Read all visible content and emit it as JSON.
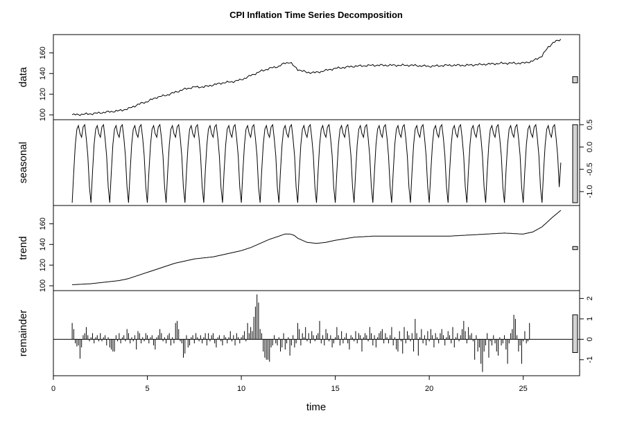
{
  "chart_data": {
    "type": "line",
    "title": "CPI Inflation Time Series Decomposition",
    "xlabel": "time",
    "xlim": [
      0,
      28
    ],
    "x_ticks": [
      0,
      5,
      10,
      15,
      20,
      25
    ],
    "x_start": 1,
    "x_end": 27,
    "frequency": 12,
    "panels": [
      {
        "name": "data",
        "label": "data",
        "ylim": [
          98,
          175
        ],
        "ticks": [
          100,
          120,
          140,
          160
        ],
        "tick_side": "left",
        "knots_x": [
          1,
          2,
          3,
          3.5,
          4,
          4.5,
          5,
          5.5,
          6,
          6.5,
          7,
          7.5,
          8,
          8.5,
          9,
          9.5,
          10,
          10.5,
          11,
          11.5,
          12,
          12.3,
          12.6,
          12.8,
          13,
          13.5,
          14,
          14.5,
          15,
          16,
          17,
          18,
          19,
          20,
          21,
          22,
          23,
          24,
          25,
          25.5,
          26,
          26.3,
          26.6,
          27
        ],
        "knots_y": [
          100,
          101,
          103,
          104,
          106,
          110,
          113,
          117,
          119,
          122,
          125,
          127,
          127,
          129,
          131,
          132,
          134,
          138,
          142,
          145,
          147,
          150,
          151,
          147,
          144,
          141,
          141,
          143,
          145,
          147,
          148,
          148,
          148,
          147,
          148,
          148,
          149,
          150,
          150,
          152,
          157,
          165,
          170,
          173
        ],
        "noise": 1.2,
        "scale_bar": [
          131,
          137
        ]
      },
      {
        "name": "seasonal",
        "label": "seasonal",
        "ylim": [
          -1.25,
          0.55
        ],
        "ticks": [
          -1.0,
          -0.5,
          0.0,
          0.5
        ],
        "tick_labels": [
          "-1.0",
          "-0.5",
          "0.0",
          "0.5"
        ],
        "tick_side": "right",
        "season": [
          -1.25,
          -0.55,
          0.05,
          0.4,
          0.48,
          0.3,
          0.22,
          0.45,
          0.5,
          0.2,
          -0.2,
          -0.9
        ],
        "end_value": -0.35,
        "scale_bar": [
          -1.25,
          0.5
        ]
      },
      {
        "name": "trend",
        "label": "trend",
        "ylim": [
          98,
          175
        ],
        "ticks": [
          100,
          120,
          140,
          160
        ],
        "tick_side": "left",
        "knots_x": [
          1,
          2,
          3,
          3.5,
          4,
          4.5,
          5,
          5.5,
          6,
          6.5,
          7,
          7.5,
          8,
          8.5,
          9,
          9.5,
          10,
          10.5,
          11,
          11.5,
          12,
          12.3,
          12.6,
          12.8,
          13,
          13.5,
          14,
          14.5,
          15,
          16,
          17,
          18,
          19,
          20,
          21,
          22,
          23,
          24,
          25,
          25.5,
          26,
          26.3,
          26.6,
          27
        ],
        "knots_y": [
          101,
          102,
          104,
          105,
          107,
          110,
          113,
          116,
          119,
          122,
          124,
          126,
          127,
          128,
          130,
          132,
          134,
          137,
          141,
          145,
          148,
          150,
          150,
          149,
          146,
          142,
          141,
          142,
          144,
          147,
          148,
          148,
          148,
          148,
          148,
          149,
          150,
          151,
          150,
          152,
          157,
          162,
          167,
          173
        ],
        "scale_bar": [
          135,
          138
        ]
      },
      {
        "name": "remainder",
        "label": "remainder",
        "ylim": [
          -1.65,
          2.25
        ],
        "ticks": [
          -1,
          0,
          1,
          2
        ],
        "tick_labels": [
          "-1",
          "0",
          "1",
          "2"
        ],
        "tick_side": "right",
        "values": [
          0.8,
          0.5,
          -0.2,
          -0.35,
          -0.3,
          -0.95,
          -0.4,
          0.2,
          0.3,
          0.6,
          0.2,
          -0.1,
          0.1,
          0.3,
          -0.2,
          0.1,
          0.2,
          -0.1,
          0.3,
          -0.1,
          0.1,
          0.2,
          -0.3,
          0.1,
          -0.4,
          -0.5,
          -0.6,
          -0.6,
          0.2,
          -0.1,
          0.3,
          -0.2,
          0.1,
          0.2,
          -0.1,
          0.5,
          0.3,
          -0.2,
          0.1,
          -0.1,
          0.2,
          -0.5,
          0.4,
          0.3,
          -0.2,
          0.1,
          -0.1,
          0.3,
          0.2,
          -0.2,
          0.1,
          0.2,
          -0.3,
          -0.5,
          0.1,
          0.2,
          0.5,
          0.3,
          -0.1,
          0.1,
          -0.2,
          0.2,
          0.3,
          -0.3,
          0.1,
          -0.2,
          0.8,
          0.9,
          0.5,
          -0.1,
          -0.2,
          -0.9,
          -0.7,
          0.2,
          -0.4,
          -0.3,
          0.1,
          0.2,
          -0.2,
          0.3,
          0.1,
          -0.1,
          0.2,
          -0.2,
          0.1,
          0.3,
          -0.3,
          0.3,
          -0.1,
          0.2,
          0.3,
          -0.2,
          -0.4,
          0.1,
          0.2,
          -0.1,
          -0.3,
          0.2,
          0.1,
          -0.2,
          0.1,
          0.4,
          -0.1,
          0.2,
          -0.3,
          0.3,
          0.1,
          -0.2,
          0.1,
          0.2,
          0.4,
          -0.1,
          0.8,
          0.3,
          0.6,
          0.4,
          1.1,
          1.6,
          2.2,
          1.8,
          0.5,
          0.3,
          -0.6,
          -0.9,
          -1.0,
          -1.0,
          -1.1,
          -0.4,
          -0.3,
          0.2,
          -0.2,
          -0.3,
          0.1,
          -0.6,
          -0.4,
          0.3,
          -0.5,
          -0.2,
          0.1,
          -0.8,
          -0.3,
          0.2,
          -0.4,
          -0.2,
          0.8,
          0.5,
          -0.3,
          0.3,
          0.1,
          0.6,
          -0.1,
          0.3,
          -0.2,
          0.4,
          0.2,
          -0.1,
          0.2,
          0.3,
          0.9,
          -0.2,
          0.2,
          -0.3,
          0.5,
          0.3,
          -0.1,
          0.2,
          -0.4,
          -0.2,
          0.1,
          0.6,
          0.2,
          -0.3,
          0.4,
          -0.2,
          0.1,
          0.3,
          -0.2,
          -0.5,
          0.2,
          0.1,
          -0.1,
          0.4,
          -0.2,
          0.3,
          0.2,
          -0.6,
          0.1,
          0.3,
          0.2,
          -0.1,
          0.6,
          0.3,
          -0.3,
          0.2,
          -0.4,
          0.1,
          0.3,
          0.4,
          0.5,
          -0.2,
          0.3,
          0.1,
          -0.2,
          0.2,
          0.6,
          -0.3,
          0.1,
          -0.5,
          -0.6,
          0.4,
          -0.1,
          -0.7,
          0.6,
          -0.2,
          0.4,
          0.2,
          -0.1,
          0.3,
          -0.6,
          1.0,
          0.3,
          -0.8,
          0.1,
          0.5,
          -0.2,
          0.2,
          -0.3,
          0.4,
          -0.1,
          0.5,
          0.2,
          -0.4,
          0.3,
          0.1,
          -0.2,
          0.3,
          0.5,
          0.2,
          -0.3,
          0.1,
          0.4,
          0.2,
          -0.2,
          0.6,
          -0.4,
          0.1,
          0.3,
          -0.1,
          0.2,
          0.5,
          0.9,
          0.4,
          -0.2,
          0.6,
          0.2,
          0.3,
          -0.1,
          -1.0,
          0.2,
          -0.6,
          -0.4,
          -1.2,
          -1.6,
          -0.6,
          -0.3,
          0.3,
          -0.9,
          -0.1,
          -0.3,
          0.2,
          -0.2,
          -0.6,
          -0.8,
          0.1,
          -0.3,
          -0.2,
          0.2,
          -0.5,
          -1.2,
          -0.2,
          0.3,
          0.5,
          1.2,
          1.0,
          0.2,
          -0.6,
          -0.3,
          -1.2,
          -0.1,
          0.4,
          -0.2,
          -0.1,
          0.8
        ],
        "scale_bar": [
          -0.65,
          1.2
        ]
      }
    ]
  }
}
